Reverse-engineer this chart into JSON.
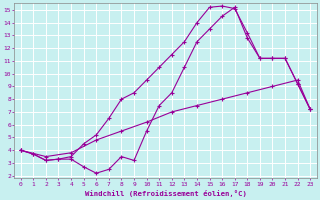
{
  "background_color": "#c8f0f0",
  "grid_color": "#a0d8d8",
  "line_color": "#990099",
  "xlabel": "Windchill (Refroidissement éolien,°C)",
  "xlim": [
    -0.5,
    23.5
  ],
  "ylim": [
    1.8,
    15.5
  ],
  "xticks": [
    0,
    1,
    2,
    3,
    4,
    5,
    6,
    7,
    8,
    9,
    10,
    11,
    12,
    13,
    14,
    15,
    16,
    17,
    18,
    19,
    20,
    21,
    22,
    23
  ],
  "yticks": [
    2,
    3,
    4,
    5,
    6,
    7,
    8,
    9,
    10,
    11,
    12,
    13,
    14,
    15
  ],
  "line1_x": [
    0,
    1,
    2,
    3,
    4,
    5,
    6,
    7,
    8,
    9,
    10,
    11,
    12,
    13,
    14,
    15,
    16,
    17,
    18,
    19,
    20,
    21,
    22,
    23
  ],
  "line1_y": [
    4.0,
    3.7,
    3.2,
    3.3,
    3.3,
    2.7,
    2.2,
    2.5,
    3.5,
    3.2,
    5.5,
    7.5,
    8.5,
    10.5,
    12.5,
    13.5,
    14.5,
    15.2,
    12.8,
    11.2,
    11.2,
    11.2,
    9.2,
    7.2
  ],
  "line2_x": [
    0,
    1,
    2,
    3,
    4,
    5,
    6,
    7,
    8,
    9,
    10,
    11,
    12,
    13,
    14,
    15,
    16,
    17,
    18,
    19,
    20,
    21,
    22,
    23
  ],
  "line2_y": [
    4.0,
    3.7,
    3.2,
    3.3,
    3.5,
    4.5,
    5.2,
    6.5,
    8.0,
    8.5,
    9.5,
    10.5,
    11.5,
    12.5,
    14.0,
    15.2,
    15.3,
    15.1,
    13.2,
    11.2,
    11.2,
    11.2,
    9.2,
    7.2
  ],
  "line3_x": [
    0,
    2,
    4,
    6,
    8,
    10,
    12,
    14,
    16,
    18,
    20,
    22,
    23
  ],
  "line3_y": [
    4.0,
    3.5,
    3.8,
    4.8,
    5.5,
    6.2,
    7.0,
    7.5,
    8.0,
    8.5,
    9.0,
    9.5,
    7.2
  ]
}
